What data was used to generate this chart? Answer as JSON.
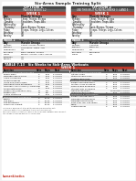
{
  "bg_color": "#f2f2f2",
  "page_bg": "#ffffff",
  "title": "Six-Arms Sample Training Split",
  "red": "#c0392b",
  "dark_gray": "#555555",
  "med_gray": "#888888",
  "light_gray": "#cccccc",
  "lighter_gray": "#e8e8e8",
  "black": "#111111",
  "white": "#ffffff",
  "top_left_table": {
    "header": "OPTION 1",
    "sub": "TRAINING WEEKS 1-2",
    "week_label": "WEEK 1",
    "cols": [
      "Day",
      "Muscle Groups"
    ],
    "rows": [
      [
        "Monday",
        "Chest, Triceps, Biceps"
      ],
      [
        "Tuesday",
        "Shoulders, Traps, Abs"
      ],
      [
        "Wednesday",
        "Off"
      ],
      [
        "Thursday",
        "Back, Biceps, Triceps"
      ],
      [
        "Friday",
        "Biceps, Triceps, Legs, Calves"
      ],
      [
        "Saturday",
        "Off"
      ],
      [
        "Sunday",
        "Off"
      ]
    ]
  },
  "top_right_table": {
    "header": "OPTION 2",
    "sub": "USE THIS SPLIT ROTATING WEEKS 3, 4 AND 5",
    "week_label": "WEEK 1",
    "cols": [
      "Day",
      "Muscle Groups"
    ],
    "rows": [
      [
        "Monday",
        "Chest, Triceps, Biceps"
      ],
      [
        "Tuesday",
        "Shoulders, Traps, Abs"
      ],
      [
        "Wednesday",
        "Off"
      ],
      [
        "Thursday",
        "Back, Biceps, Triceps"
      ],
      [
        "Friday",
        "Biceps, Triceps, Legs, Calves"
      ],
      [
        "Saturday",
        "Off"
      ],
      [
        "Sunday",
        "Off"
      ]
    ]
  },
  "mid_left_table": {
    "header": "WEEK 2",
    "sub": "Unit Total Completed 30.3 | Solution Week 2",
    "cols": [
      "Day",
      "Muscle Groups"
    ],
    "rows": [
      [
        "Monday",
        "Chest, Triceps, Biceps"
      ],
      [
        "Tuesday",
        "Shoulders, Traps, Abs"
      ],
      [
        "Wednesday",
        "Off"
      ],
      [
        "Thursday",
        "Back, Biceps, Triceps"
      ],
      [
        "Friday",
        "Biceps, Triceps, Legs, Calves"
      ],
      [
        "Saturday",
        "Off"
      ],
      [
        "Sunday",
        "Off"
      ]
    ]
  },
  "mid_right_table": {
    "header": "WEEK 3",
    "sub": "Unit Total Completed 30.3 | Solution Week 4",
    "cols": [
      "Day",
      "Muscle Groups"
    ],
    "rows": [
      [
        "Monday",
        "Chest Bi"
      ],
      [
        "Tuesday",
        "Back Tri"
      ],
      [
        "Wednesday",
        "Off"
      ],
      [
        "Thursday",
        "Shoulders"
      ],
      [
        "Friday",
        "Off"
      ]
    ]
  },
  "bottom_title": "TABLE 7.13   Six Weeks to Sick-Arms Workouts",
  "bottom_sub": "WEEK 1",
  "workout_cols": [
    "Exercise",
    "Sets",
    "Reps",
    "Rest"
  ],
  "left_workout": [
    [
      "WORKOUT 1: CHEST/TRICEPS",
      "",
      "",
      "",
      "section"
    ],
    [
      "Bench press",
      "3",
      "8-12",
      "2-3 mins",
      "row"
    ],
    [
      "Dumbbell bench press",
      "3",
      "8-12",
      "2-3 mins",
      "row"
    ],
    [
      "Cable crossovers",
      "3",
      "8-12",
      "2-3 mins",
      "row"
    ],
    [
      "Tricep kickbacks",
      "3",
      "8-12",
      "2-3 mins",
      "row"
    ],
    [
      "Close-grip bench press",
      "3",
      "8-12",
      "2-3 mins",
      "row"
    ],
    [
      "Overhead tricep extensions",
      "3",
      "8-12",
      "2-3 mins",
      "row"
    ],
    [
      "Dumbbell skull crushers/combined",
      "21",
      "8-8",
      "2-3 mins",
      "row"
    ],
    [
      "Tricep extensions",
      "3",
      "8-12",
      "2-3 mins",
      "row"
    ],
    [
      "Barbell curl (negative reps)",
      "21",
      "3-8",
      "2-3 mins",
      "row"
    ],
    [
      "Barbell curl",
      "21",
      "8-8",
      "2-3 mins",
      "row"
    ],
    [
      "Active stretching",
      "3",
      "8-12",
      "2-3 mins",
      "row"
    ],
    [
      "WORKOUT 2: BACK/BICEPS",
      "",
      "",
      "",
      "section"
    ],
    [
      "Squats",
      "3",
      "10-12",
      "2-3 mins",
      "row"
    ],
    [
      "Leg press",
      "3",
      "10-12",
      "2-3 mins",
      "row"
    ],
    [
      "Leg extensions",
      "3",
      "10-12",
      "2-3 mins",
      "row"
    ],
    [
      "Romanian deadlift",
      "3",
      "10-12",
      "2-3 mins",
      "row"
    ]
  ],
  "right_workout": [
    [
      "WORKOUT COLS CONTINUED",
      "",
      "",
      "",
      "section"
    ],
    [
      "Lat pull down",
      "3",
      "8-12",
      "2-3 mins",
      "row"
    ],
    [
      "Standing cable rows",
      "4",
      "8-12",
      "2-3 mins",
      "row"
    ],
    [
      "Seated cable rows",
      "3",
      "8-12",
      "2-3 mins",
      "row"
    ],
    [
      "TRICEP/BICEP TRI-SET",
      "",
      "",
      "",
      "section"
    ],
    [
      "Barbell overhead press",
      "4",
      "8-12",
      "2-3 mins",
      "row"
    ],
    [
      "Military press overhead",
      "4",
      "8-12",
      "2-3 mins",
      "row"
    ],
    [
      "Reverse grip pulldowns",
      "4",
      "8-12",
      "2-3 mins",
      "row"
    ],
    [
      "Straight-arm pulldowns",
      "4",
      "8-12",
      "2-3 mins",
      "row"
    ],
    [
      "Hanging leg raises",
      "",
      "To failure",
      "2-3 mins",
      "row"
    ],
    [
      "Standing cable crunch",
      "3",
      "8-12",
      "2-3 mins",
      "row"
    ],
    [
      "WORKOUT 3: SHOULDERS",
      "",
      "",
      "",
      "section"
    ],
    [
      "Barbell shoulder press",
      "4",
      "8-12",
      "2-3 mins",
      "row"
    ],
    [
      "Dumbbell lateral raises",
      "3",
      "8-12",
      "2-3 mins",
      "row"
    ],
    [
      "Dumbbell front raises",
      "3",
      "8-12",
      "2-3 mins",
      "row"
    ],
    [
      "Bent-over rear delt raises",
      "3",
      "8-12",
      "2-3 mins",
      "row"
    ],
    [
      "Cable",
      "3",
      "8-12",
      "2-3 mins",
      "row"
    ],
    [
      "Seated energy",
      "3",
      "8-12",
      "2-3 mins",
      "row"
    ]
  ],
  "footer": [
    "* perform 1 warmup set at a light-to-medium RPE before the sets.",
    "** Perform both of these sets back-to-back with minimal rest.",
    "Perform this workout two times weekly, three-day gaps between each workout.",
    "The ratings are not law but are recommended."
  ],
  "publisher": "humankinetics"
}
